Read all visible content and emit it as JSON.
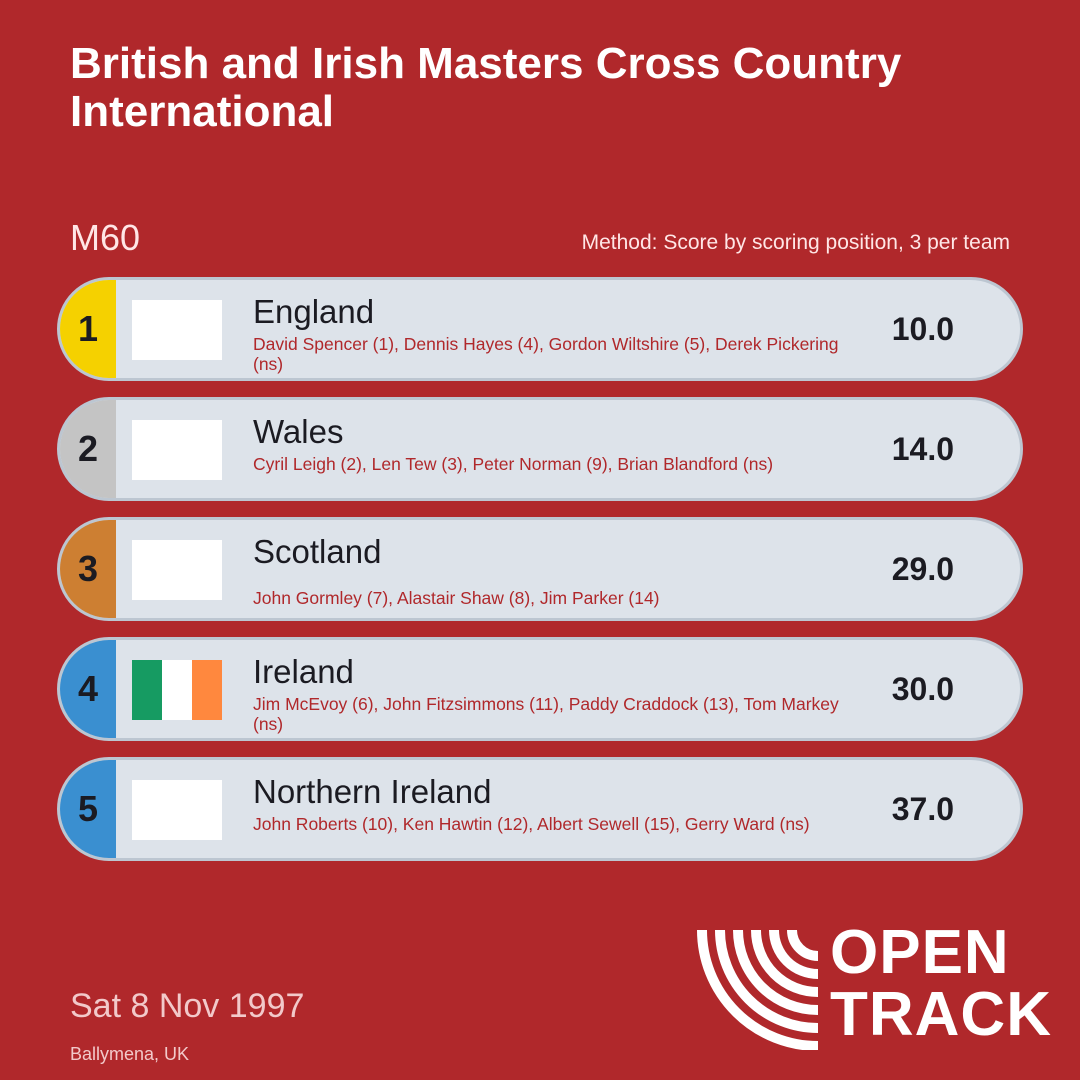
{
  "header": {
    "title": "British and Irish Masters Cross Country International",
    "category": "M60",
    "method": "Method: Score by scoring position, 3 per team"
  },
  "results": [
    {
      "rank": "1",
      "rank_color": "#f5d100",
      "team": "England",
      "athletes": "David Spencer (1), Dennis Hayes (4), Gordon Wiltshire (5), Derek Pickering (ns)",
      "score": "10.0",
      "flag": "blank"
    },
    {
      "rank": "2",
      "rank_color": "#c4c4c4",
      "team": "Wales",
      "athletes": "Cyril Leigh (2), Len Tew (3), Peter Norman (9), Brian Blandford (ns)",
      "score": "14.0",
      "flag": "blank"
    },
    {
      "rank": "3",
      "rank_color": "#cd7f32",
      "team": "Scotland",
      "athletes": "John Gormley (7), Alastair Shaw (8), Jim Parker (14)",
      "score": "29.0",
      "flag": "blank"
    },
    {
      "rank": "4",
      "rank_color": "#3a8fd0",
      "team": "Ireland",
      "athletes": "Jim McEvoy (6), John Fitzsimmons (11), Paddy Craddock (13), Tom Markey (ns)",
      "score": "30.0",
      "flag": "ireland-tricolour",
      "flag_colors": [
        "#169b62",
        "#ffffff",
        "#ff883e"
      ]
    },
    {
      "rank": "5",
      "rank_color": "#3a8fd0",
      "team": "Northern Ireland",
      "athletes": "John Roberts (10), Ken Hawtin (12), Albert Sewell (15), Gerry Ward (ns)",
      "score": "37.0",
      "flag": "blank"
    }
  ],
  "footer": {
    "date": "Sat 8 Nov 1997",
    "venue": "Ballymena, UK",
    "logo_line1": "OPEN",
    "logo_line2": "TRACK",
    "logo_icon": "opentrack-arcs-icon"
  }
}
